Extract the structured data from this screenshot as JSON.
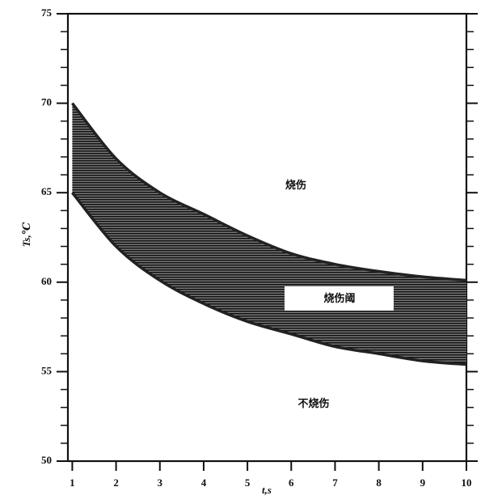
{
  "chart_data": {
    "type": "band",
    "x_label": "t,s",
    "y_label": "Ts,℃",
    "x": [
      1,
      2,
      3,
      4,
      5,
      6,
      7,
      8,
      9,
      10
    ],
    "series": [
      {
        "values": [
          70,
          66.9,
          65.0,
          63.8,
          62.6,
          61.6,
          61.0,
          60.6,
          60.3,
          60.1
        ]
      },
      {
        "values": [
          65,
          62.0,
          60.1,
          58.8,
          57.8,
          57.1,
          56.4,
          56.0,
          55.6,
          55.4
        ]
      }
    ],
    "color": "#222222",
    "xlim": [
      0.9,
      10
    ],
    "xticks": [
      1,
      2,
      3,
      4,
      5,
      6,
      7,
      8,
      9,
      10
    ],
    "ylim": [
      50,
      75
    ],
    "yticks": [
      50,
      55,
      60,
      65,
      70,
      75
    ],
    "yminorticks": [
      51,
      52,
      53,
      54,
      56,
      57,
      58,
      59,
      61,
      62,
      63,
      64,
      66,
      67,
      68,
      69,
      71,
      72,
      73,
      74
    ],
    "annotations": [
      "烧伤",
      "烧伤阈",
      "不烧伤"
    ]
  }
}
